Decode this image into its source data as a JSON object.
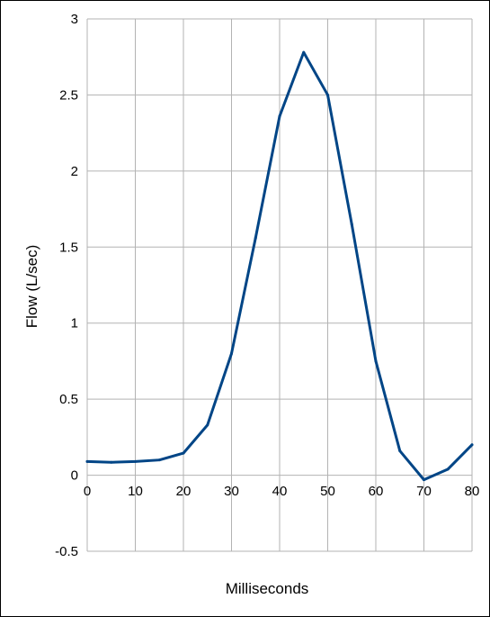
{
  "chart_data": {
    "type": "line",
    "title": "",
    "xlabel": "Milliseconds",
    "ylabel": "Flow (L/sec)",
    "xlim": [
      0,
      80
    ],
    "ylim": [
      -0.5,
      3
    ],
    "x_ticks": [
      "0",
      "10",
      "20",
      "30",
      "40",
      "50",
      "60",
      "70",
      "80"
    ],
    "y_ticks": [
      "-0.5",
      "0",
      "0.5",
      "1",
      "1.5",
      "2",
      "2.5",
      "3"
    ],
    "grid": true,
    "legend": "none",
    "series": [
      {
        "color": "#004586",
        "x": [
          0,
          5,
          10,
          15,
          20,
          25,
          30,
          35,
          40,
          45,
          50,
          55,
          60,
          65,
          70,
          75,
          80
        ],
        "y": [
          0.09,
          0.085,
          0.09,
          0.1,
          0.145,
          0.33,
          0.8,
          1.56,
          2.36,
          2.78,
          2.5,
          1.65,
          0.75,
          0.16,
          -0.03,
          0.04,
          0.2
        ]
      }
    ]
  }
}
